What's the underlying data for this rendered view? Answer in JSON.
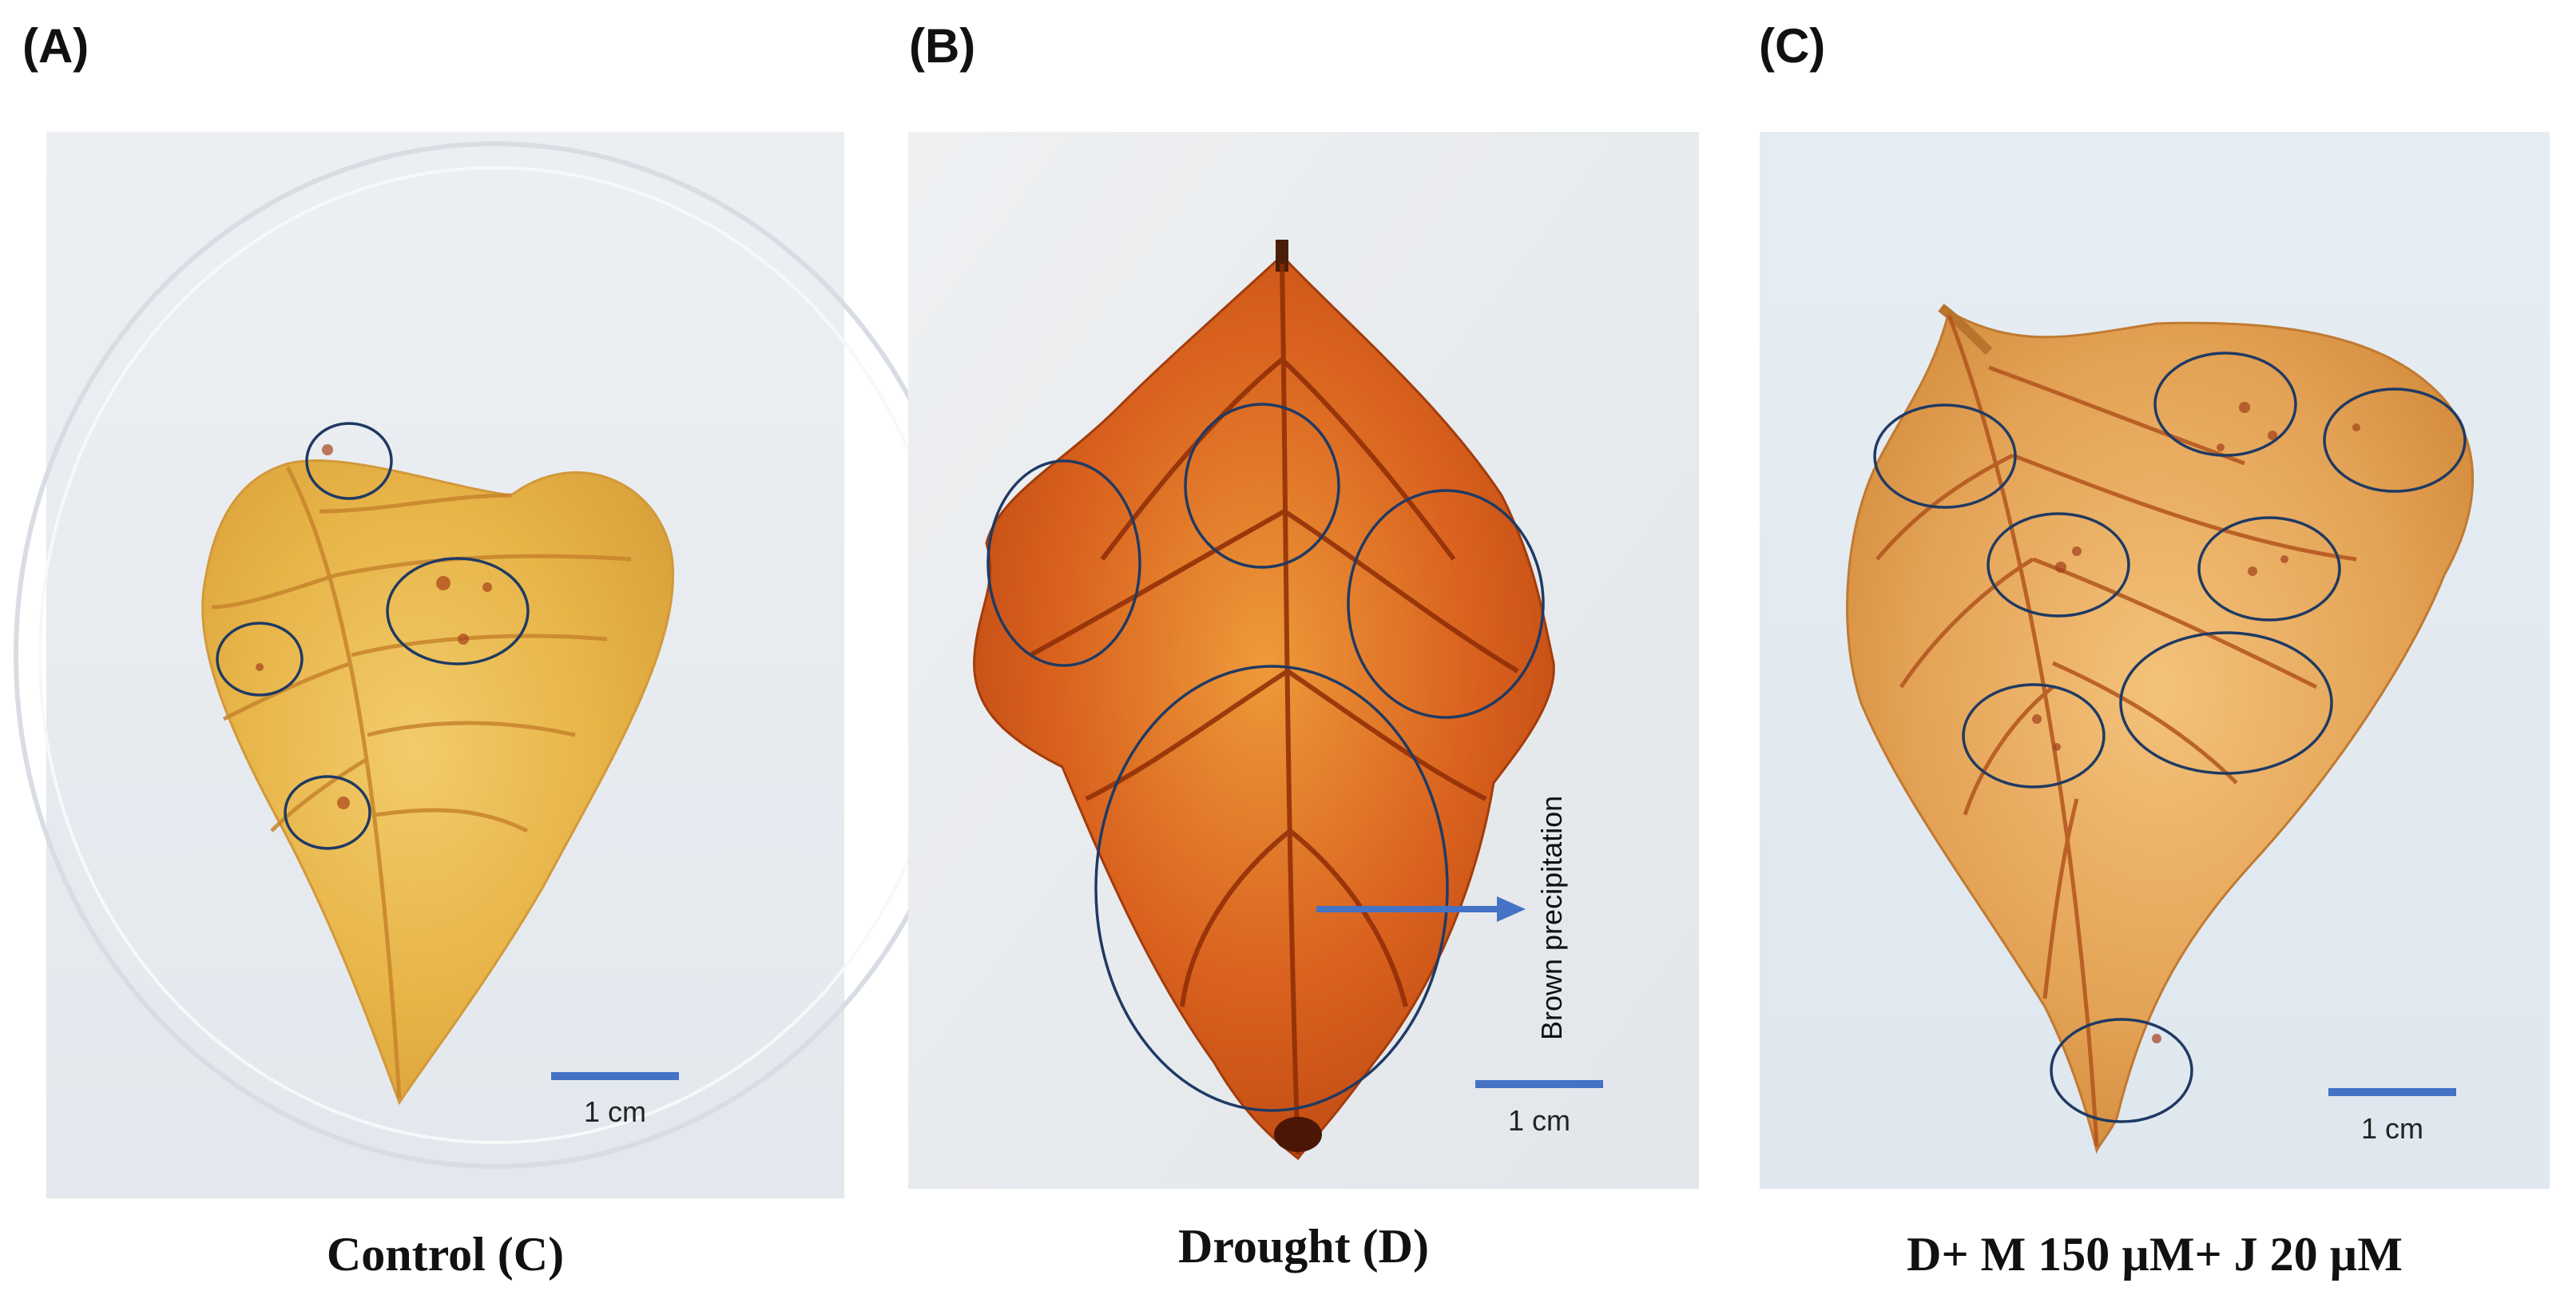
{
  "figure": {
    "panels": [
      {
        "letter": "(A)",
        "caption": "Control (C)",
        "scale_label": "1 cm"
      },
      {
        "letter": "(B)",
        "caption": "Drought (D)",
        "scale_label": "1 cm",
        "annotation": "Brown precipitation"
      },
      {
        "letter": "(C)",
        "caption": "D+ M 150 µM+ J 20 µM",
        "scale_label": "1 cm"
      }
    ],
    "colors": {
      "circle_outline": "#1f3a63",
      "scale_bar": "#4472c4",
      "arrow": "#4472c4",
      "leaf_control": "#e9b64a",
      "leaf_drought": "#d4581a",
      "leaf_treated": "#e59c45"
    }
  }
}
